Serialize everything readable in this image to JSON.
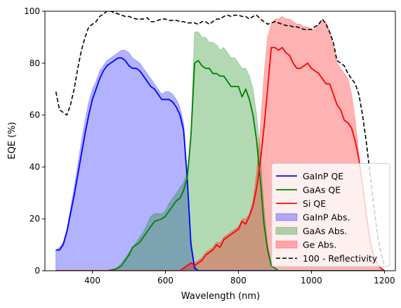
{
  "chart_data": {
    "type": "area",
    "title": "",
    "xlabel": "Wavelength (nm)",
    "ylabel": "EQE (%)",
    "xlim": [
      270,
      1230
    ],
    "ylim": [
      0,
      100
    ],
    "xticks": [
      400,
      600,
      800,
      1000,
      1200
    ],
    "yticks": [
      0,
      20,
      40,
      60,
      80,
      100
    ],
    "grid": false,
    "legend_position": "lower right",
    "series": [
      {
        "name": "GaInP QE",
        "kind": "line",
        "color": "#0000ff",
        "x": [
          300,
          310,
          320,
          330,
          340,
          350,
          360,
          370,
          380,
          390,
          400,
          410,
          420,
          430,
          440,
          450,
          460,
          470,
          480,
          490,
          500,
          510,
          520,
          530,
          540,
          550,
          560,
          570,
          580,
          590,
          600,
          610,
          620,
          630,
          640,
          650,
          660,
          670,
          680,
          690,
          1200
        ],
        "y": [
          8,
          8,
          10,
          15,
          22,
          29,
          37,
          45,
          53,
          60,
          66,
          70,
          74,
          77,
          79,
          80,
          81,
          82,
          82,
          81,
          79,
          78,
          78,
          77,
          75,
          73,
          71,
          70,
          68,
          66,
          66,
          66,
          65,
          63,
          60,
          54,
          35,
          10,
          1,
          0,
          0
        ]
      },
      {
        "name": "GaAs QE",
        "kind": "line",
        "color": "#008000",
        "x": [
          300,
          440,
          460,
          470,
          480,
          490,
          500,
          510,
          520,
          530,
          540,
          550,
          560,
          570,
          580,
          590,
          600,
          610,
          620,
          630,
          640,
          650,
          660,
          670,
          680,
          690,
          700,
          710,
          720,
          730,
          740,
          750,
          760,
          770,
          780,
          790,
          800,
          810,
          820,
          830,
          840,
          850,
          860,
          870,
          880,
          890,
          900,
          910,
          920,
          1200
        ],
        "y": [
          0,
          0,
          0.5,
          1,
          2,
          4,
          6,
          9,
          10,
          11,
          13,
          15,
          17,
          19,
          19.5,
          20,
          21,
          23,
          25,
          27,
          28,
          31,
          36,
          52,
          80,
          81,
          79,
          78,
          78,
          76,
          76,
          75,
          75,
          73,
          71,
          71,
          71,
          67,
          70,
          66,
          60,
          50,
          35,
          18,
          8,
          2,
          1,
          0,
          0,
          0
        ]
      },
      {
        "name": "Si QE",
        "kind": "line",
        "color": "#ff0000",
        "x": [
          300,
          640,
          650,
          660,
          670,
          680,
          690,
          700,
          710,
          720,
          730,
          740,
          750,
          760,
          770,
          780,
          790,
          800,
          810,
          820,
          830,
          840,
          850,
          860,
          870,
          880,
          890,
          900,
          910,
          920,
          930,
          940,
          950,
          960,
          970,
          980,
          990,
          1000,
          1010,
          1020,
          1030,
          1040,
          1050,
          1060,
          1070,
          1080,
          1090,
          1100,
          1110,
          1120,
          1130,
          1140,
          1150,
          1160,
          1170,
          1180,
          1190,
          1200
        ],
        "y": [
          0,
          0,
          1,
          2,
          3,
          2,
          3,
          4,
          6,
          7,
          8,
          10,
          9,
          12,
          13,
          14,
          15,
          16,
          19,
          18,
          21,
          25,
          32,
          42,
          55,
          70,
          86,
          86,
          85,
          86,
          84,
          83,
          80,
          78,
          78,
          79,
          80,
          78,
          77,
          76,
          74,
          72,
          72,
          68,
          64,
          62,
          58,
          57,
          55,
          50,
          43,
          33,
          22,
          12,
          6,
          3,
          1,
          0
        ]
      },
      {
        "name": "GaInP Abs.",
        "kind": "area",
        "color": "#0000ff",
        "fill": "rgba(0,0,255,0.3)",
        "x": [
          300,
          310,
          320,
          330,
          340,
          350,
          360,
          370,
          380,
          390,
          400,
          410,
          420,
          430,
          440,
          450,
          460,
          470,
          480,
          490,
          500,
          510,
          520,
          530,
          540,
          550,
          560,
          570,
          580,
          590,
          600,
          610,
          620,
          630,
          640,
          650,
          660,
          670,
          680,
          690,
          1200
        ],
        "y": [
          8,
          9,
          11,
          16,
          24,
          32,
          41,
          50,
          58,
          65,
          70,
          73,
          77,
          79,
          81,
          82,
          83,
          84,
          85,
          85,
          84,
          82,
          81,
          80,
          78,
          76,
          74,
          72,
          70,
          68,
          69,
          69,
          68,
          66,
          63,
          57,
          37,
          12,
          2,
          0,
          0
        ]
      },
      {
        "name": "GaAs Abs.",
        "kind": "area",
        "color": "#008000",
        "fill": "rgba(0,128,0,0.3)",
        "x": [
          300,
          440,
          460,
          470,
          480,
          490,
          500,
          510,
          520,
          530,
          540,
          550,
          560,
          570,
          580,
          590,
          600,
          610,
          620,
          630,
          640,
          650,
          660,
          670,
          680,
          690,
          700,
          710,
          720,
          730,
          740,
          750,
          760,
          770,
          780,
          790,
          800,
          810,
          820,
          830,
          840,
          850,
          860,
          870,
          880,
          890,
          900,
          910,
          920,
          1200
        ],
        "y": [
          0,
          0,
          0.5,
          1.5,
          3,
          5,
          7,
          9,
          11,
          13,
          15,
          18,
          21,
          22,
          22,
          22,
          23,
          26,
          28,
          30,
          32,
          34,
          38,
          54,
          92,
          92,
          90,
          90,
          88,
          88,
          87,
          85,
          86,
          84,
          82,
          82,
          80,
          78,
          78,
          75,
          70,
          60,
          45,
          25,
          10,
          3,
          1,
          0,
          0,
          0
        ]
      },
      {
        "name": "Ge Abs.",
        "kind": "area",
        "color": "#ff0000",
        "fill": "rgba(255,0,0,0.3)",
        "x": [
          300,
          640,
          650,
          660,
          670,
          680,
          690,
          700,
          710,
          720,
          730,
          740,
          750,
          760,
          770,
          780,
          790,
          800,
          810,
          820,
          830,
          840,
          850,
          860,
          870,
          880,
          890,
          900,
          910,
          920,
          930,
          940,
          950,
          960,
          970,
          980,
          990,
          1000,
          1010,
          1020,
          1030,
          1040,
          1050,
          1060,
          1070,
          1080,
          1090,
          1100,
          1110,
          1120,
          1130,
          1140,
          1150,
          1160,
          1170,
          1180,
          1190,
          1200
        ],
        "y": [
          0,
          0,
          1,
          2,
          3,
          3,
          4,
          5,
          7,
          8,
          9,
          11,
          11,
          13,
          14,
          15,
          16,
          17,
          20,
          20,
          22,
          27,
          38,
          55,
          75,
          90,
          95,
          97,
          97,
          98,
          97,
          97,
          96,
          95,
          95,
          94,
          94,
          93,
          93,
          95,
          96,
          96,
          92,
          86,
          80,
          78,
          76,
          74,
          68,
          58,
          45,
          32,
          20,
          12,
          6,
          3,
          1,
          0
        ]
      },
      {
        "name": "100 - Reflectivity",
        "kind": "dashed",
        "color": "#000000",
        "x": [
          300,
          310,
          320,
          330,
          340,
          350,
          360,
          370,
          380,
          390,
          400,
          410,
          420,
          430,
          440,
          450,
          460,
          470,
          480,
          490,
          500,
          510,
          520,
          530,
          540,
          550,
          560,
          570,
          580,
          590,
          600,
          610,
          620,
          630,
          640,
          650,
          660,
          670,
          680,
          690,
          700,
          710,
          720,
          730,
          740,
          750,
          760,
          770,
          780,
          790,
          800,
          810,
          820,
          830,
          840,
          850,
          860,
          870,
          880,
          890,
          900,
          910,
          920,
          930,
          940,
          950,
          960,
          970,
          980,
          990,
          1000,
          1010,
          1020,
          1030,
          1040,
          1050,
          1060,
          1070,
          1080,
          1090,
          1100,
          1110,
          1120,
          1130,
          1140,
          1150,
          1160,
          1170,
          1180,
          1190,
          1200
        ],
        "y": [
          69,
          62,
          61,
          60,
          64,
          70,
          78,
          85,
          90,
          94,
          95,
          96,
          98,
          99,
          100,
          100,
          99.5,
          99,
          98.5,
          98,
          98,
          97.5,
          97,
          97,
          97,
          97.5,
          96,
          96,
          96.5,
          97,
          97,
          96.5,
          96.5,
          96.5,
          96,
          96,
          95.5,
          95.5,
          95.5,
          95,
          96,
          96,
          95,
          96,
          97,
          97,
          98,
          98.5,
          98,
          98.5,
          98.5,
          98,
          98,
          97,
          98,
          98.5,
          97,
          96,
          95,
          95.5,
          96,
          95.5,
          95,
          94.5,
          94.5,
          94,
          94,
          93.5,
          93,
          93,
          93,
          94,
          95,
          97,
          95,
          92,
          88,
          81,
          80,
          79,
          76,
          74,
          72,
          68,
          60,
          50,
          38,
          26,
          15,
          7,
          2
        ]
      }
    ]
  }
}
